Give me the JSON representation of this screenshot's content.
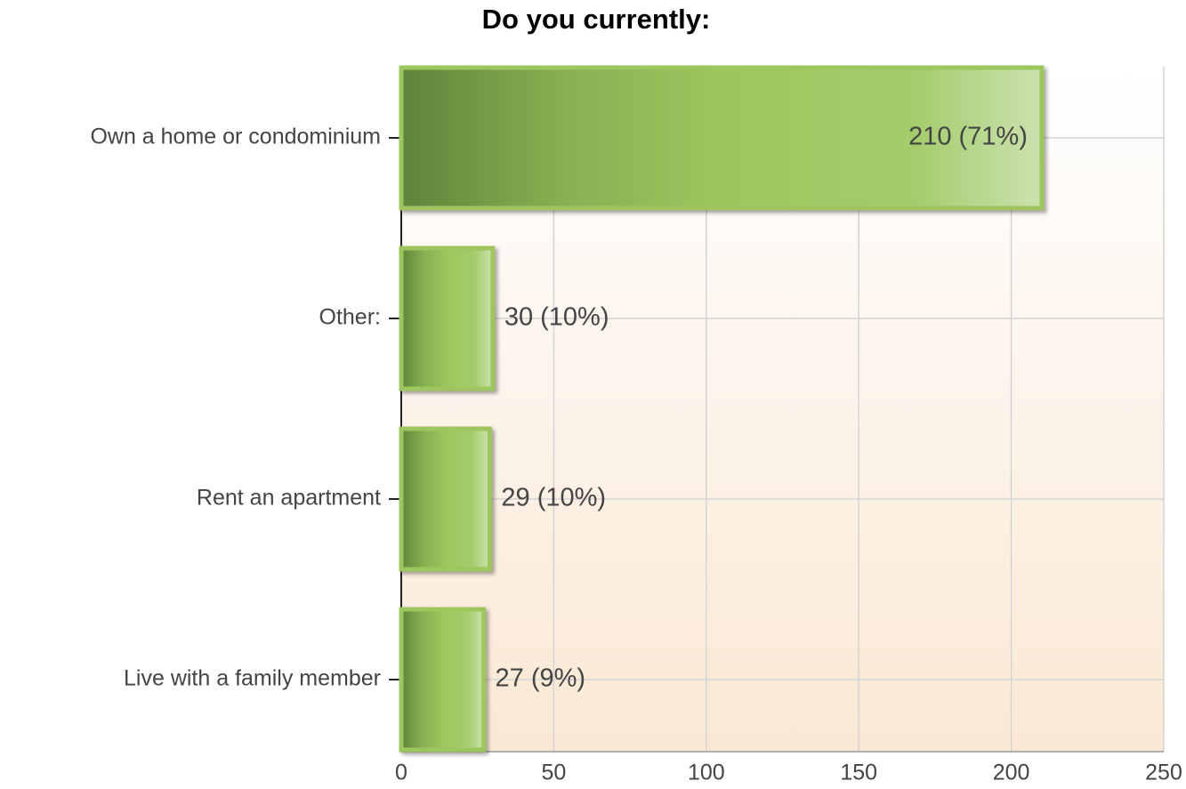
{
  "chart_data": {
    "type": "bar",
    "orientation": "horizontal",
    "title": "Do you currently:",
    "categories": [
      "Own a home or condominium",
      "Other:",
      "Rent an apartment",
      "Live with a family member"
    ],
    "values": [
      210,
      30,
      29,
      27
    ],
    "value_labels": [
      "210 (71%)",
      "30 (10%)",
      "29 (10%)",
      "27 (9%)"
    ],
    "color": "#9dc65e",
    "xlim": [
      0,
      250
    ],
    "xticks": [
      0,
      50,
      100,
      150,
      200,
      250
    ],
    "grid": true
  }
}
